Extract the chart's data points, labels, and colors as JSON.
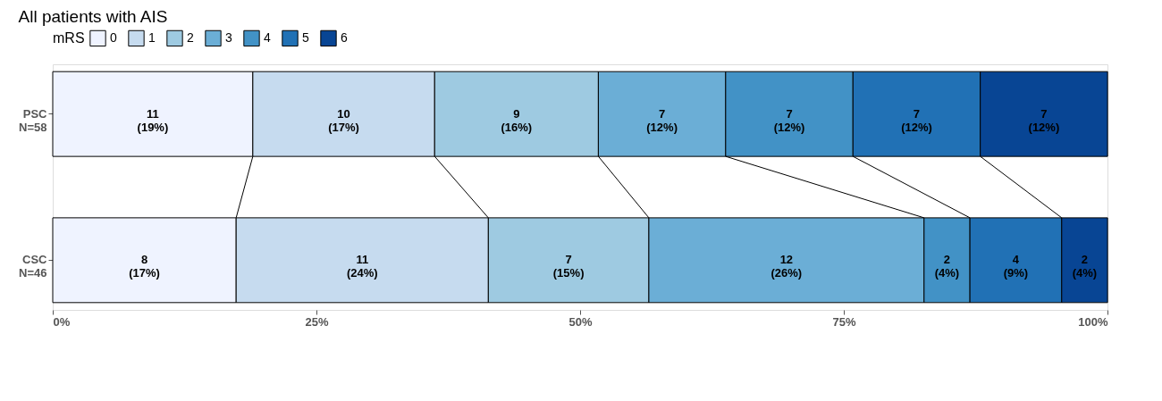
{
  "chart_data": {
    "type": "bar",
    "orientation": "horizontal",
    "stacked": true,
    "title": "All patients with AIS",
    "legend_title": "mRS",
    "legend": "top",
    "categories": [
      "PSC N=58",
      "CSC N=46"
    ],
    "series": [
      {
        "name": "0",
        "color": "#eff3ff",
        "values": [
          18.97,
          17.39
        ],
        "value_labels": [
          "11 (19%)",
          "8 (17%)"
        ]
      },
      {
        "name": "1",
        "color": "#c6dbef",
        "values": [
          17.24,
          23.91
        ],
        "value_labels": [
          "10 (17%)",
          "11 (24%)"
        ]
      },
      {
        "name": "2",
        "color": "#9ecae1",
        "values": [
          15.52,
          15.22
        ],
        "value_labels": [
          "9 (16%)",
          "7 (15%)"
        ]
      },
      {
        "name": "3",
        "color": "#6baed6",
        "values": [
          12.07,
          26.09
        ],
        "value_labels": [
          "7 (12%)",
          "12 (26%)"
        ]
      },
      {
        "name": "4",
        "color": "#4292c6",
        "values": [
          12.07,
          4.35
        ],
        "value_labels": [
          "7 (12%)",
          "2 (4%)"
        ]
      },
      {
        "name": "5",
        "color": "#2171b5",
        "values": [
          12.07,
          8.7
        ],
        "value_labels": [
          "7 (12%)",
          "4 (9%)"
        ]
      },
      {
        "name": "6",
        "color": "#084594",
        "values": [
          12.07,
          4.35
        ],
        "value_labels": [
          "7 (12%)",
          "2 (4%)"
        ]
      }
    ],
    "xlim": [
      0,
      100
    ],
    "xticks": [
      {
        "value": 0,
        "label": "0%"
      },
      {
        "value": 25,
        "label": "25%"
      },
      {
        "value": 50,
        "label": "50%"
      },
      {
        "value": 75,
        "label": "75%"
      },
      {
        "value": 100,
        "label": "100%"
      }
    ],
    "grid": false
  }
}
